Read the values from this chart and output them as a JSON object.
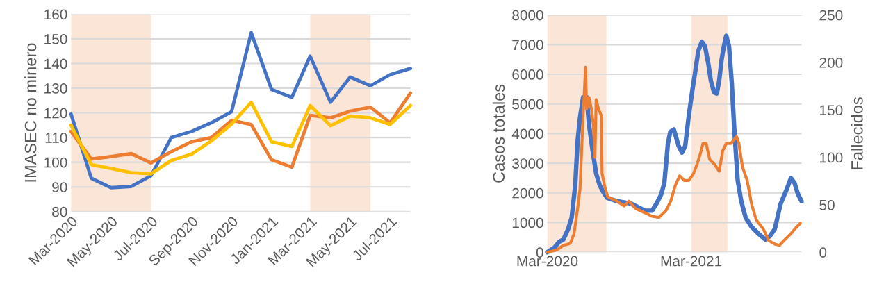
{
  "chart_data": [
    {
      "type": "line",
      "ylabel": "IMASEC no minero",
      "x": [
        "2020-03",
        "2020-04",
        "2020-05",
        "2020-06",
        "2020-07",
        "2020-08",
        "2020-09",
        "2020-10",
        "2020-11",
        "2020-12",
        "2021-01",
        "2021-02",
        "2021-03",
        "2021-04",
        "2021-05",
        "2021-06",
        "2021-07",
        "2021-08"
      ],
      "series": [
        {
          "color": "#4472c4",
          "values": [
            119.5,
            93.5,
            89.7,
            90.2,
            94.5,
            110,
            112.5,
            116,
            120.5,
            152.5,
            129.5,
            126.3,
            143,
            124.3,
            134.5,
            131,
            135.5,
            138
          ]
        },
        {
          "color": "#ed7d31",
          "values": [
            112.5,
            101.3,
            102.3,
            103.5,
            99.7,
            104.3,
            108.3,
            110,
            117,
            115.3,
            101,
            98,
            119,
            118,
            120.7,
            122.3,
            116,
            128
          ]
        },
        {
          "color": "#ffc000",
          "values": [
            115,
            99,
            97.5,
            95.8,
            95.3,
            100.7,
            103.3,
            108.6,
            115.5,
            124.3,
            108.3,
            106.4,
            123,
            114.8,
            118.7,
            118,
            115.3,
            123
          ]
        }
      ],
      "xlim": [
        "2020-03",
        "2021-08"
      ],
      "xticks": [
        {
          "value": "2020-03",
          "label": "Mar-2020"
        },
        {
          "value": "2020-05",
          "label": "May-2020"
        },
        {
          "value": "2020-07",
          "label": "Jul-2020"
        },
        {
          "value": "2020-09",
          "label": "Sep-2020"
        },
        {
          "value": "2020-11",
          "label": "Nov-2020"
        },
        {
          "value": "2021-01",
          "label": "Jan-2021"
        },
        {
          "value": "2021-03",
          "label": "Mar-2021"
        },
        {
          "value": "2021-05",
          "label": "May-2021"
        },
        {
          "value": "2021-07",
          "label": "Jul-2021"
        }
      ],
      "ylim": [
        80,
        160
      ],
      "yticks": [
        80,
        90,
        100,
        110,
        120,
        130,
        140,
        150,
        160
      ],
      "bands": [
        {
          "axis": "x",
          "from": "2020-03",
          "to": "2020-07",
          "color": "#fbe5d6"
        },
        {
          "axis": "x",
          "from": "2021-03",
          "to": "2021-06",
          "color": "#fbe5d6"
        }
      ],
      "grid": "y",
      "legend": false
    },
    {
      "type": "line",
      "ylabel": "Casos totales",
      "y2label": "Fallecidos",
      "series": [
        {
          "color": "#4472c4",
          "x": [
            "2020-03-01",
            "2020-03-19",
            "2020-03-31",
            "2020-04-11",
            "2020-04-23",
            "2020-05-02",
            "2020-05-11",
            "2020-05-17",
            "2020-05-23",
            "2020-05-31",
            "2020-06-09",
            "2020-06-15",
            "2020-06-24",
            "2020-07-03",
            "2020-07-12",
            "2020-07-21",
            "2020-07-31",
            "2020-08-25",
            "2020-09-29",
            "2020-11-04",
            "2020-11-22",
            "2020-12-03",
            "2020-12-15",
            "2020-12-23",
            "2021-01-01",
            "2021-01-07",
            "2021-01-16",
            "2021-01-28",
            "2021-02-06",
            "2021-02-14",
            "2021-02-23",
            "2021-03-04",
            "2021-03-13",
            "2021-03-19",
            "2021-03-28",
            "2021-04-05",
            "2021-04-14",
            "2021-04-20",
            "2021-04-28",
            "2021-05-05",
            "2021-05-11",
            "2021-05-17",
            "2021-05-23",
            "2021-05-29",
            "2021-06-05",
            "2021-06-12",
            "2021-06-18",
            "2021-06-27",
            "2021-07-06",
            "2021-07-17",
            "2021-08-01",
            "2021-08-19",
            "2021-09-05",
            "2021-09-17",
            "2021-09-29",
            "2021-10-14",
            "2021-10-29",
            "2021-11-09",
            "2021-11-18",
            "2021-11-27",
            "2021-12-06"
          ],
          "values": [
            0,
            150,
            350,
            430,
            780,
            1170,
            2260,
            3750,
            4530,
            5230,
            5230,
            4290,
            3430,
            2650,
            2260,
            2030,
            1830,
            1720,
            1640,
            1400,
            1400,
            1640,
            1950,
            2340,
            3670,
            4060,
            4140,
            3590,
            3360,
            3590,
            4610,
            5460,
            6240,
            6790,
            7100,
            6950,
            6320,
            5780,
            5390,
            5350,
            5780,
            6480,
            6950,
            7300,
            6950,
            5700,
            4220,
            2420,
            1720,
            1170,
            860,
            620,
            430,
            550,
            780,
            1640,
            2110,
            2500,
            2340,
            1950,
            1720
          ]
        },
        {
          "color": "#ed7d31",
          "axis": "y2",
          "x": [
            "2020-03-01",
            "2020-03-25",
            "2020-04-11",
            "2020-04-23",
            "2020-04-29",
            "2020-05-08",
            "2020-05-17",
            "2020-05-23",
            "2020-05-27",
            "2020-05-31",
            "2020-06-03",
            "2020-06-06",
            "2020-06-09",
            "2020-06-15",
            "2020-06-21",
            "2020-06-26",
            "2020-06-30",
            "2020-07-03",
            "2020-07-09",
            "2020-07-16",
            "2020-07-18",
            "2020-07-24",
            "2020-08-01",
            "2020-08-25",
            "2020-09-12",
            "2020-09-24",
            "2020-10-11",
            "2020-11-04",
            "2020-11-22",
            "2020-12-09",
            "2020-12-27",
            "2021-01-08",
            "2021-01-20",
            "2021-01-31",
            "2021-02-12",
            "2021-02-23",
            "2021-03-07",
            "2021-03-16",
            "2021-03-25",
            "2021-03-31",
            "2021-04-08",
            "2021-04-17",
            "2021-04-29",
            "2021-05-11",
            "2021-05-20",
            "2021-05-29",
            "2021-06-10",
            "2021-06-24",
            "2021-06-30",
            "2021-07-09",
            "2021-07-21",
            "2021-08-01",
            "2021-08-13",
            "2021-08-31",
            "2021-09-14",
            "2021-09-29",
            "2021-10-11",
            "2021-10-22",
            "2021-11-09",
            "2021-11-21",
            "2021-12-03"
          ],
          "values": [
            0,
            2.4,
            7.3,
            8.5,
            9.8,
            19.5,
            46,
            66,
            105,
            144,
            168,
            195,
            151,
            163,
            151,
            134,
            100,
            161,
            151,
            144,
            83,
            71,
            58.5,
            53.7,
            48.8,
            53.7,
            46,
            41.5,
            37.8,
            36.6,
            43.9,
            53.7,
            70.7,
            80.5,
            75.6,
            75.6,
            83,
            92.7,
            105,
            114.6,
            114.6,
            97.6,
            92.7,
            85.4,
            107,
            114.6,
            114.6,
            122,
            114.6,
            90,
            75.6,
            51,
            34,
            24.4,
            12.2,
            8.5,
            7.3,
            12.2,
            19.5,
            25.6,
            30.5
          ]
        }
      ],
      "xlim": [
        "2020-03-01",
        "2021-12-06"
      ],
      "xticks": [
        {
          "value": "2020-03-01",
          "label": "Mar-2020"
        },
        {
          "value": "2021-03-01",
          "label": "Mar-2021"
        }
      ],
      "ylim": [
        0,
        8000
      ],
      "yticks": [
        0,
        1000,
        2000,
        3000,
        4000,
        5000,
        6000,
        7000,
        8000
      ],
      "y2lim": [
        0,
        250
      ],
      "y2ticks": [
        0,
        50,
        100,
        150,
        200,
        250
      ],
      "bands": [
        {
          "axis": "x",
          "from": "2020-03-01",
          "to": "2020-07-29",
          "color": "#fbe5d6"
        },
        {
          "axis": "x",
          "from": "2021-03-01",
          "to": "2021-06-01",
          "color": "#fbe5d6"
        }
      ],
      "grid": "y",
      "legend": false
    }
  ]
}
